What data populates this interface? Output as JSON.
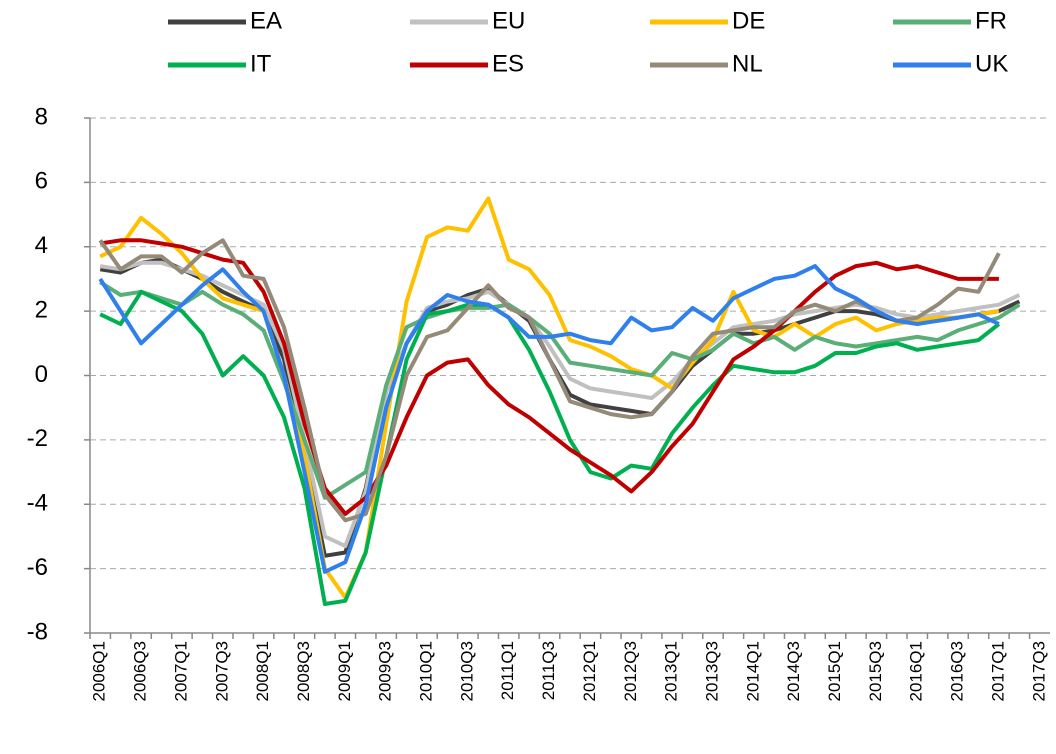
{
  "chart_data": {
    "type": "line",
    "categories": [
      "2006Q1",
      null,
      "2006Q3",
      null,
      "2007Q1",
      null,
      "2007Q3",
      null,
      "2008Q1",
      null,
      "2008Q3",
      null,
      "2009Q1",
      null,
      "2009Q3",
      null,
      "2010Q1",
      null,
      "2010Q3",
      null,
      "2011Q1",
      null,
      "2011Q3",
      null,
      "2012Q1",
      null,
      "2012Q3",
      null,
      "2013Q1",
      null,
      "2013Q3",
      null,
      "2014Q1",
      null,
      "2014Q3",
      null,
      "2015Q1",
      null,
      "2015Q3",
      null,
      "2016Q1",
      null,
      "2016Q3",
      null,
      "2017Q1",
      null,
      "2017Q3"
    ],
    "series": [
      {
        "name": "EA",
        "color": "#404040",
        "values": [
          3.3,
          3.2,
          3.5,
          3.6,
          3.3,
          3.0,
          2.6,
          2.3,
          2.0,
          0.5,
          -2.5,
          -5.6,
          -5.5,
          -3.5,
          -0.5,
          1.0,
          2.0,
          2.2,
          2.5,
          2.7,
          2.2,
          1.7,
          0.5,
          -0.6,
          -0.9,
          -1.0,
          -1.1,
          -1.2,
          -0.5,
          0.3,
          0.8,
          1.3,
          1.3,
          1.4,
          1.6,
          1.8,
          2.0,
          2.0,
          1.9,
          1.7,
          1.7,
          1.7,
          1.8,
          1.9,
          2.0,
          2.3,
          null
        ]
      },
      {
        "name": "EU",
        "color": "#c0c0c0",
        "values": [
          3.4,
          3.3,
          3.5,
          3.5,
          3.3,
          3.1,
          2.8,
          2.5,
          2.2,
          0.8,
          -2.0,
          -5.0,
          -5.3,
          -3.6,
          -0.5,
          1.0,
          2.1,
          2.3,
          2.4,
          2.6,
          2.2,
          1.8,
          0.9,
          -0.1,
          -0.4,
          -0.5,
          -0.6,
          -0.7,
          -0.2,
          0.5,
          1.0,
          1.5,
          1.6,
          1.7,
          1.9,
          2.0,
          2.1,
          2.2,
          2.1,
          1.9,
          1.8,
          1.9,
          2.0,
          2.1,
          2.2,
          2.5,
          null
        ]
      },
      {
        "name": "DE",
        "color": "#ffc000",
        "values": [
          3.7,
          4.0,
          4.9,
          4.4,
          3.8,
          3.0,
          2.4,
          2.2,
          2.0,
          0.0,
          -2.5,
          -6.0,
          -6.9,
          -5.5,
          -1.5,
          2.3,
          4.3,
          4.6,
          4.5,
          5.5,
          3.6,
          3.3,
          2.5,
          1.1,
          0.9,
          0.6,
          0.2,
          0.0,
          -0.4,
          0.4,
          1.1,
          2.6,
          1.4,
          1.2,
          1.6,
          1.2,
          1.6,
          1.8,
          1.4,
          1.6,
          1.7,
          1.8,
          1.8,
          1.9,
          2.0,
          null,
          null
        ]
      },
      {
        "name": "FR",
        "color": "#5aae78",
        "values": [
          2.9,
          2.5,
          2.6,
          2.4,
          2.2,
          2.6,
          2.2,
          1.9,
          1.4,
          -0.2,
          -2.0,
          -3.8,
          -3.4,
          -3.0,
          -0.3,
          1.5,
          1.8,
          2.0,
          2.1,
          2.1,
          2.2,
          1.8,
          1.3,
          0.4,
          0.3,
          0.2,
          0.1,
          0.0,
          0.7,
          0.5,
          0.8,
          1.3,
          1.0,
          1.2,
          0.8,
          1.2,
          1.0,
          0.9,
          1.0,
          1.1,
          1.2,
          1.1,
          1.4,
          1.6,
          1.8,
          2.2,
          null
        ]
      },
      {
        "name": "IT",
        "color": "#00b050",
        "values": [
          1.9,
          1.6,
          2.6,
          2.3,
          2.0,
          1.3,
          0.0,
          0.6,
          0.0,
          -1.3,
          -3.5,
          -7.1,
          -7.0,
          -5.5,
          -2.5,
          0.5,
          1.9,
          2.0,
          2.2,
          2.2,
          1.8,
          0.8,
          -0.5,
          -2.0,
          -3.0,
          -3.2,
          -2.8,
          -2.9,
          -1.8,
          -1.0,
          -0.3,
          0.3,
          0.2,
          0.1,
          0.1,
          0.3,
          0.7,
          0.7,
          0.9,
          1.0,
          0.8,
          0.9,
          1.0,
          1.1,
          1.6,
          null,
          null
        ]
      },
      {
        "name": "ES",
        "color": "#c00000",
        "values": [
          4.1,
          4.2,
          4.2,
          4.1,
          4.0,
          3.8,
          3.6,
          3.5,
          2.6,
          1.0,
          -1.5,
          -3.5,
          -4.3,
          -3.8,
          -2.8,
          -1.3,
          0.0,
          0.4,
          0.5,
          -0.3,
          -0.9,
          -1.3,
          -1.8,
          -2.3,
          -2.7,
          -3.1,
          -3.6,
          -3.0,
          -2.2,
          -1.5,
          -0.5,
          0.5,
          0.9,
          1.4,
          2.0,
          2.6,
          3.1,
          3.4,
          3.5,
          3.3,
          3.4,
          3.2,
          3.0,
          3.0,
          3.0,
          null,
          null
        ]
      },
      {
        "name": "NL",
        "color": "#948a78",
        "values": [
          4.2,
          3.3,
          3.7,
          3.7,
          3.2,
          3.8,
          4.2,
          3.1,
          3.0,
          1.5,
          -1.0,
          -3.7,
          -4.5,
          -4.3,
          -2.5,
          0.0,
          1.2,
          1.4,
          2.1,
          2.8,
          2.1,
          1.8,
          0.5,
          -0.8,
          -1.0,
          -1.2,
          -1.3,
          -1.2,
          -0.5,
          0.6,
          1.3,
          1.4,
          1.5,
          1.5,
          2.0,
          2.2,
          2.0,
          2.3,
          2.0,
          1.7,
          1.8,
          2.2,
          2.7,
          2.6,
          3.8,
          null,
          null
        ]
      },
      {
        "name": "UK",
        "color": "#2f80ed",
        "values": [
          3.0,
          2.0,
          1.0,
          1.6,
          2.2,
          2.8,
          3.3,
          2.6,
          2.0,
          0.0,
          -3.0,
          -6.1,
          -5.8,
          -4.0,
          -1.0,
          1.0,
          2.0,
          2.5,
          2.3,
          2.2,
          1.8,
          1.2,
          1.2,
          1.3,
          1.1,
          1.0,
          1.8,
          1.4,
          1.5,
          2.1,
          1.7,
          2.4,
          2.7,
          3.0,
          3.1,
          3.4,
          2.7,
          2.4,
          2.0,
          1.7,
          1.6,
          1.7,
          1.8,
          1.9,
          1.6,
          null,
          null
        ]
      }
    ],
    "ylim": [
      -8,
      8
    ],
    "yticks": [
      -8,
      -6,
      -4,
      -2,
      0,
      2,
      4,
      6,
      8
    ],
    "grid": true
  }
}
